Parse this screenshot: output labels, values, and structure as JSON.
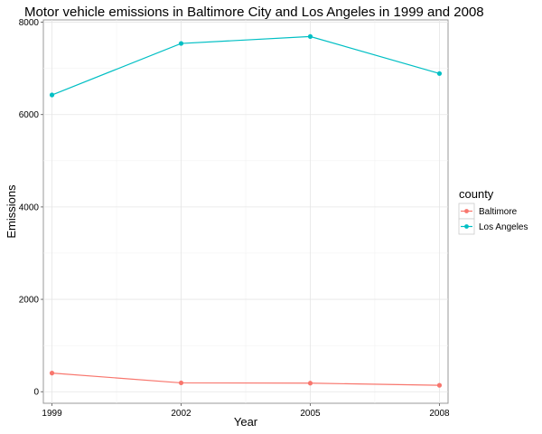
{
  "chart_data": {
    "type": "line",
    "title": "Motor vehicle emissions in Baltimore City and Los Angeles in 1999 and 2008",
    "xlabel": "Year",
    "ylabel": "Emissions",
    "x": [
      1999,
      2002,
      2005,
      2008
    ],
    "x_tick_labels": [
      "1999",
      "2002",
      "2005",
      "2008"
    ],
    "y_ticks": [
      0,
      2000,
      4000,
      6000,
      8000
    ],
    "y_tick_labels": [
      "0",
      "2000",
      "4000",
      "6000",
      "8000"
    ],
    "xlim": [
      1998.8,
      2008.2
    ],
    "ylim": [
      -250,
      8050
    ],
    "grid": true,
    "legend": {
      "title": "county",
      "placement": "right"
    },
    "series": [
      {
        "name": "Baltimore",
        "color": "#F8766D",
        "values": [
          403,
          192,
          185,
          139
        ]
      },
      {
        "name": "Los Angeles",
        "color": "#00BFC4",
        "values": [
          6425,
          7540,
          7690,
          6889
        ]
      }
    ]
  }
}
